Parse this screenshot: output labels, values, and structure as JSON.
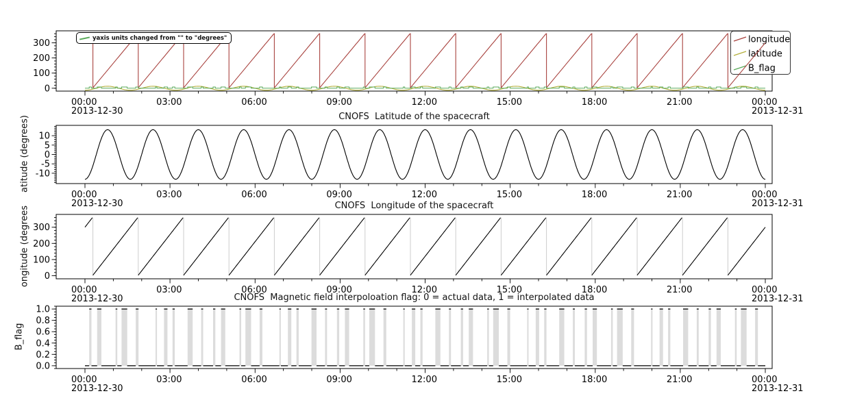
{
  "figure": {
    "background": "#ffffff",
    "axis_color": "#000000"
  },
  "annotation": {
    "text": "yaxis units changed from \"\" to \"degrees\"",
    "line_color": "#5aaa5a"
  },
  "legend": {
    "position": "top-right",
    "items": [
      {
        "label": "longitude",
        "color": "#a8423e"
      },
      {
        "label": "latitude",
        "color": "#b4b03c"
      },
      {
        "label": "B_flag",
        "color": "#5aaa5a"
      }
    ]
  },
  "time_axis": {
    "range_hours": [
      0,
      24
    ],
    "tick_hours": [
      0,
      3,
      6,
      9,
      12,
      15,
      18,
      21,
      24
    ],
    "tick_labels": [
      "00:00",
      "03:00",
      "06:00",
      "09:00",
      "12:00",
      "15:00",
      "18:00",
      "21:00",
      "00:00"
    ],
    "minor_step_hours": 1,
    "start_date": "2013-12-30",
    "end_date": "2013-12-31"
  },
  "flag_intervals_hours": [
    [
      0.15,
      0.23
    ],
    [
      0.43,
      0.58
    ],
    [
      1.08,
      1.14
    ],
    [
      1.29,
      1.49
    ],
    [
      1.79,
      1.89
    ],
    [
      2.49,
      2.54
    ],
    [
      2.79,
      2.91
    ],
    [
      3.09,
      3.17
    ],
    [
      3.62,
      3.8
    ],
    [
      4.1,
      4.17
    ],
    [
      4.52,
      4.6
    ],
    [
      4.8,
      4.95
    ],
    [
      5.45,
      5.51
    ],
    [
      5.66,
      5.86
    ],
    [
      6.16,
      6.26
    ],
    [
      6.86,
      6.91
    ],
    [
      7.16,
      7.28
    ],
    [
      7.46,
      7.54
    ],
    [
      7.99,
      8.17
    ],
    [
      8.47,
      8.54
    ],
    [
      8.89,
      8.97
    ],
    [
      9.17,
      9.32
    ],
    [
      9.82,
      9.88
    ],
    [
      10.03,
      10.23
    ],
    [
      10.53,
      10.63
    ],
    [
      11.23,
      11.28
    ],
    [
      11.53,
      11.65
    ],
    [
      11.83,
      11.91
    ],
    [
      12.36,
      12.54
    ],
    [
      12.84,
      12.91
    ],
    [
      13.26,
      13.34
    ],
    [
      13.54,
      13.69
    ],
    [
      14.19,
      14.25
    ],
    [
      14.4,
      14.6
    ],
    [
      14.9,
      15.0
    ],
    [
      15.6,
      15.65
    ],
    [
      15.9,
      16.02
    ],
    [
      16.2,
      16.28
    ],
    [
      16.73,
      16.91
    ],
    [
      17.21,
      17.28
    ],
    [
      17.63,
      17.71
    ],
    [
      17.91,
      18.06
    ],
    [
      18.56,
      18.62
    ],
    [
      18.77,
      18.97
    ],
    [
      19.27,
      19.37
    ],
    [
      19.97,
      20.02
    ],
    [
      20.27,
      20.39
    ],
    [
      20.57,
      20.65
    ],
    [
      21.1,
      21.28
    ],
    [
      21.58,
      21.65
    ],
    [
      22.0,
      22.08
    ],
    [
      22.28,
      22.43
    ],
    [
      22.93,
      22.99
    ],
    [
      23.14,
      23.34
    ],
    [
      23.64,
      23.74
    ]
  ],
  "chart_data": [
    {
      "type": "line",
      "title": "",
      "ylabel": "",
      "ylim": [
        -18.9,
        378.9
      ],
      "yticks": [
        0,
        100,
        200,
        300
      ],
      "ytick_labels": [
        "0",
        "100",
        "200",
        "300"
      ],
      "yminor_step": 20,
      "grid": false,
      "series": [
        {
          "name": "longitude",
          "color": "#a8423e",
          "model": "sawtooth",
          "start_deg": 300,
          "rate_deg_per_hour": 225,
          "wrap": 360
        },
        {
          "name": "latitude",
          "color": "#b4b03c",
          "model": "cosine",
          "amplitude_deg": 13.2,
          "period_hours": 1.6,
          "phase": "min_at_t0"
        },
        {
          "name": "B_flag",
          "color": "#5aaa5a",
          "model": "flag",
          "values": [
            0,
            1
          ]
        }
      ]
    },
    {
      "type": "line",
      "title": "CNOFS  Latitude of the spacecraft",
      "ylabel": "atitude (degrees)",
      "ylim": [
        -15.5,
        15.5
      ],
      "yticks": [
        -10,
        -5,
        0,
        5,
        10
      ],
      "ytick_labels": [
        "-10",
        "-5",
        "0",
        "5",
        "10"
      ],
      "yminor_step": 1,
      "grid": false,
      "series": [
        {
          "name": "latitude",
          "color": "#000000",
          "model": "cosine",
          "amplitude_deg": 13.2,
          "period_hours": 1.6,
          "phase": "min_at_t0"
        }
      ]
    },
    {
      "type": "line",
      "title": "CNOFS  Longitude of the spacecraft",
      "ylabel": "ongitude (degrees",
      "ylim": [
        -19,
        379
      ],
      "yticks": [
        0,
        100,
        200,
        300
      ],
      "ytick_labels": [
        "0",
        "100",
        "200",
        "300"
      ],
      "yminor_step": 20,
      "grid": false,
      "series": [
        {
          "name": "longitude",
          "color": "#000000",
          "model": "sawtooth",
          "start_deg": 300,
          "rate_deg_per_hour": 225,
          "wrap": 360,
          "wrap_line_color": "#cccccc"
        }
      ]
    },
    {
      "type": "line",
      "title": "CNOFS  Magnetic field interpoloation flag: 0 = actual data, 1 = interpolated data",
      "ylabel": "B_flag",
      "ylim": [
        -0.05,
        1.05
      ],
      "yticks": [
        0,
        0.2,
        0.4,
        0.6,
        0.8,
        1
      ],
      "ytick_labels": [
        "0.0",
        "0.2",
        "0.4",
        "0.6",
        "0.8",
        "1.0"
      ],
      "yminor_step": 0.05,
      "grid": false,
      "series": [
        {
          "name": "B_flag",
          "model": "flag-bars",
          "bar_color": "#dcdcdc",
          "line_color": "#000000",
          "values": [
            0,
            1
          ]
        }
      ]
    }
  ]
}
